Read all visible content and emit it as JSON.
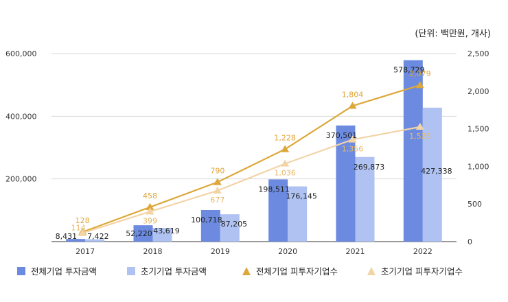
{
  "colors": {
    "total_invest": "#6C8BE0",
    "early_invest": "#AFC2F2",
    "total_count": "#DDA73A",
    "early_count": "#F2D4A6",
    "label_count_total": "#E0A434",
    "label_count_early": "#E8B866"
  },
  "chart_data": {
    "type": "bar+line",
    "unit_label": "(단위: 백만원, 개사)",
    "categories": [
      "2017",
      "2018",
      "2019",
      "2020",
      "2021",
      "2022"
    ],
    "left_axis": {
      "min": 0,
      "max": 600000,
      "ticks": [
        "200,000",
        "400,000",
        "600,000"
      ],
      "tick_values": [
        200000,
        400000,
        600000
      ]
    },
    "right_axis": {
      "min": 0,
      "max": 2500,
      "ticks": [
        "0",
        "500",
        "1,000",
        "1,500",
        "2,000",
        "2,500"
      ],
      "tick_values": [
        0,
        500,
        1000,
        1500,
        2000,
        2500
      ]
    },
    "grid": true,
    "legend_position": "bottom",
    "series": [
      {
        "name": "전체기업 투자금액",
        "type": "bar",
        "axis": "left",
        "color_key": "total_invest",
        "values": [
          8431,
          52220,
          100718,
          198511,
          370501,
          578729
        ],
        "labels": [
          "8,431",
          "52,220",
          "100,718",
          "198,511",
          "370,501",
          "578,729"
        ]
      },
      {
        "name": "초기기업 투자금액",
        "type": "bar",
        "axis": "left",
        "color_key": "early_invest",
        "values": [
          7422,
          43619,
          87205,
          176145,
          269873,
          427338
        ],
        "labels": [
          "7,422",
          "43,619",
          "87,205",
          "176,145",
          "269,873",
          "427,338"
        ]
      },
      {
        "name": "전체기업 피투자기업수",
        "type": "line",
        "axis": "right",
        "color_key": "total_count",
        "values": [
          128,
          458,
          790,
          1228,
          1804,
          2079
        ],
        "labels": [
          "128",
          "458",
          "790",
          "1,228",
          "1,804",
          "2,079"
        ]
      },
      {
        "name": "초기기업 피투자기업수",
        "type": "line",
        "axis": "right",
        "color_key": "early_count",
        "values": [
          114,
          399,
          677,
          1036,
          1356,
          1525
        ],
        "labels": [
          "114",
          "399",
          "677",
          "1,036",
          "1,356",
          "1,525"
        ]
      }
    ]
  }
}
